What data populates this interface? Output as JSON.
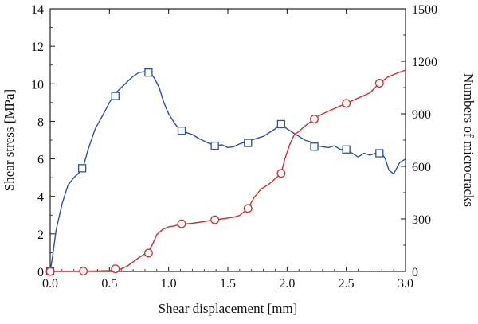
{
  "chart_data": {
    "type": "line",
    "xlabel": "Shear displacement [mm]",
    "ylabel_left": "Shear stress [MPa]",
    "ylabel_right": "Numbers of microcracks",
    "xlim": [
      0,
      3.0
    ],
    "ylim_left": [
      0,
      14
    ],
    "ylim_right": [
      0,
      1500
    ],
    "x_ticks": [
      "0.0",
      "0.5",
      "1.0",
      "1.5",
      "2.0",
      "2.5",
      "3.0"
    ],
    "y_left_ticks": [
      "0",
      "2",
      "4",
      "6",
      "8",
      "10",
      "12",
      "14"
    ],
    "y_right_ticks": [
      "0",
      "300",
      "600",
      "900",
      "1200",
      "1500"
    ],
    "grid": false,
    "colors": {
      "stress": "#2f4fa3",
      "cracks": "#e8242a"
    },
    "series": [
      {
        "axis": "left",
        "marker": "square",
        "x": [
          0.0,
          0.02,
          0.05,
          0.1,
          0.15,
          0.2,
          0.25,
          0.28,
          0.32,
          0.38,
          0.45,
          0.5,
          0.55,
          0.6,
          0.65,
          0.7,
          0.75,
          0.8,
          0.85,
          0.88,
          0.92,
          0.96,
          1.0,
          1.05,
          1.1,
          1.15,
          1.2,
          1.25,
          1.3,
          1.35,
          1.4,
          1.45,
          1.5,
          1.55,
          1.6,
          1.65,
          1.7,
          1.75,
          1.8,
          1.85,
          1.9,
          1.93,
          1.96,
          2.0,
          2.05,
          2.1,
          2.15,
          2.2,
          2.25,
          2.3,
          2.35,
          2.4,
          2.45,
          2.5,
          2.55,
          2.6,
          2.65,
          2.7,
          2.75,
          2.8,
          2.83,
          2.86,
          2.9,
          2.95,
          3.0
        ],
        "values": [
          0.0,
          0.8,
          2.2,
          3.6,
          4.6,
          5.0,
          5.3,
          5.6,
          6.5,
          7.6,
          8.4,
          9.0,
          9.5,
          9.8,
          10.1,
          10.4,
          10.6,
          10.65,
          10.55,
          10.3,
          9.8,
          9.0,
          8.4,
          7.9,
          7.5,
          7.4,
          7.3,
          7.1,
          6.95,
          6.8,
          6.7,
          6.75,
          6.6,
          6.65,
          6.8,
          6.9,
          7.0,
          7.1,
          7.2,
          7.4,
          7.6,
          7.8,
          7.85,
          7.6,
          7.4,
          7.2,
          7.0,
          6.9,
          6.7,
          6.65,
          6.6,
          6.7,
          6.5,
          6.5,
          6.3,
          6.1,
          6.3,
          6.2,
          6.3,
          6.3,
          6.0,
          5.4,
          5.2,
          5.8,
          6.0
        ],
        "marker_x": [
          0.0,
          0.27,
          0.55,
          0.83,
          1.11,
          1.39,
          1.67,
          1.95,
          2.23,
          2.5,
          2.78
        ],
        "marker_values": [
          0.0,
          5.5,
          9.35,
          10.6,
          7.5,
          6.7,
          6.85,
          7.85,
          6.65,
          6.5,
          6.3
        ]
      },
      {
        "axis": "right",
        "marker": "circle",
        "x": [
          0.0,
          0.2,
          0.3,
          0.4,
          0.5,
          0.55,
          0.6,
          0.65,
          0.7,
          0.75,
          0.8,
          0.83,
          0.86,
          0.9,
          0.95,
          1.0,
          1.05,
          1.1,
          1.15,
          1.2,
          1.3,
          1.39,
          1.45,
          1.5,
          1.55,
          1.6,
          1.67,
          1.72,
          1.78,
          1.85,
          1.9,
          1.95,
          1.98,
          2.02,
          2.06,
          2.1,
          2.15,
          2.2,
          2.23,
          2.3,
          2.4,
          2.5,
          2.6,
          2.7,
          2.78,
          2.85,
          2.92,
          3.0
        ],
        "values": [
          0,
          0,
          1,
          3,
          5,
          8,
          15,
          30,
          55,
          80,
          100,
          115,
          150,
          210,
          240,
          255,
          260,
          270,
          272,
          275,
          285,
          295,
          300,
          305,
          310,
          320,
          360,
          420,
          470,
          500,
          530,
          560,
          640,
          720,
          780,
          800,
          830,
          855,
          875,
          900,
          930,
          960,
          990,
          1020,
          1075,
          1110,
          1130,
          1150
        ],
        "marker_x": [
          0.0,
          0.28,
          0.55,
          0.83,
          1.11,
          1.39,
          1.67,
          1.95,
          2.23,
          2.5,
          2.78
        ],
        "marker_values": [
          0,
          2,
          15,
          105,
          272,
          295,
          360,
          560,
          870,
          960,
          1075
        ]
      }
    ]
  }
}
